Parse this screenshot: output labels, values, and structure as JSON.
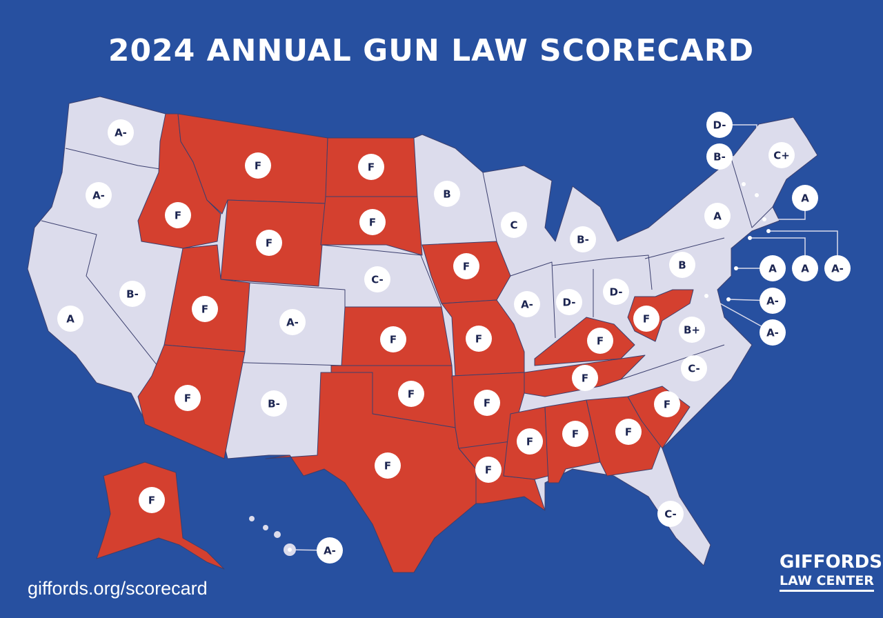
{
  "title": "2024 ANNUAL GUN LAW SCORECARD",
  "url": "giffords.org/scorecard",
  "logo": {
    "line1": "GIFFORDS",
    "line2": "LAW CENTER"
  },
  "colors": {
    "background": "#2750a0",
    "failing_state": "#d4402f",
    "other_state": "#dcdcec",
    "border": "#3b3f6e",
    "badge": "#ffffff",
    "badge_text": "#1b2450"
  },
  "grades": [
    "A-",
    "A-",
    "A",
    "B-",
    "F",
    "F",
    "F",
    "F",
    "F",
    "A-",
    "B-",
    "F",
    "F",
    "C-",
    "F",
    "F",
    "F",
    "B",
    "F",
    "F",
    "F",
    "F",
    "C",
    "A-",
    "B-",
    "D-",
    "D-",
    "F",
    "F",
    "F",
    "F",
    "F",
    "C-",
    "F",
    "C-",
    "B+",
    "F",
    "B",
    "A",
    "C+",
    "D-",
    "B-",
    "A",
    "A",
    "A-",
    "A",
    "A-",
    "A-",
    "F",
    "A-"
  ]
}
